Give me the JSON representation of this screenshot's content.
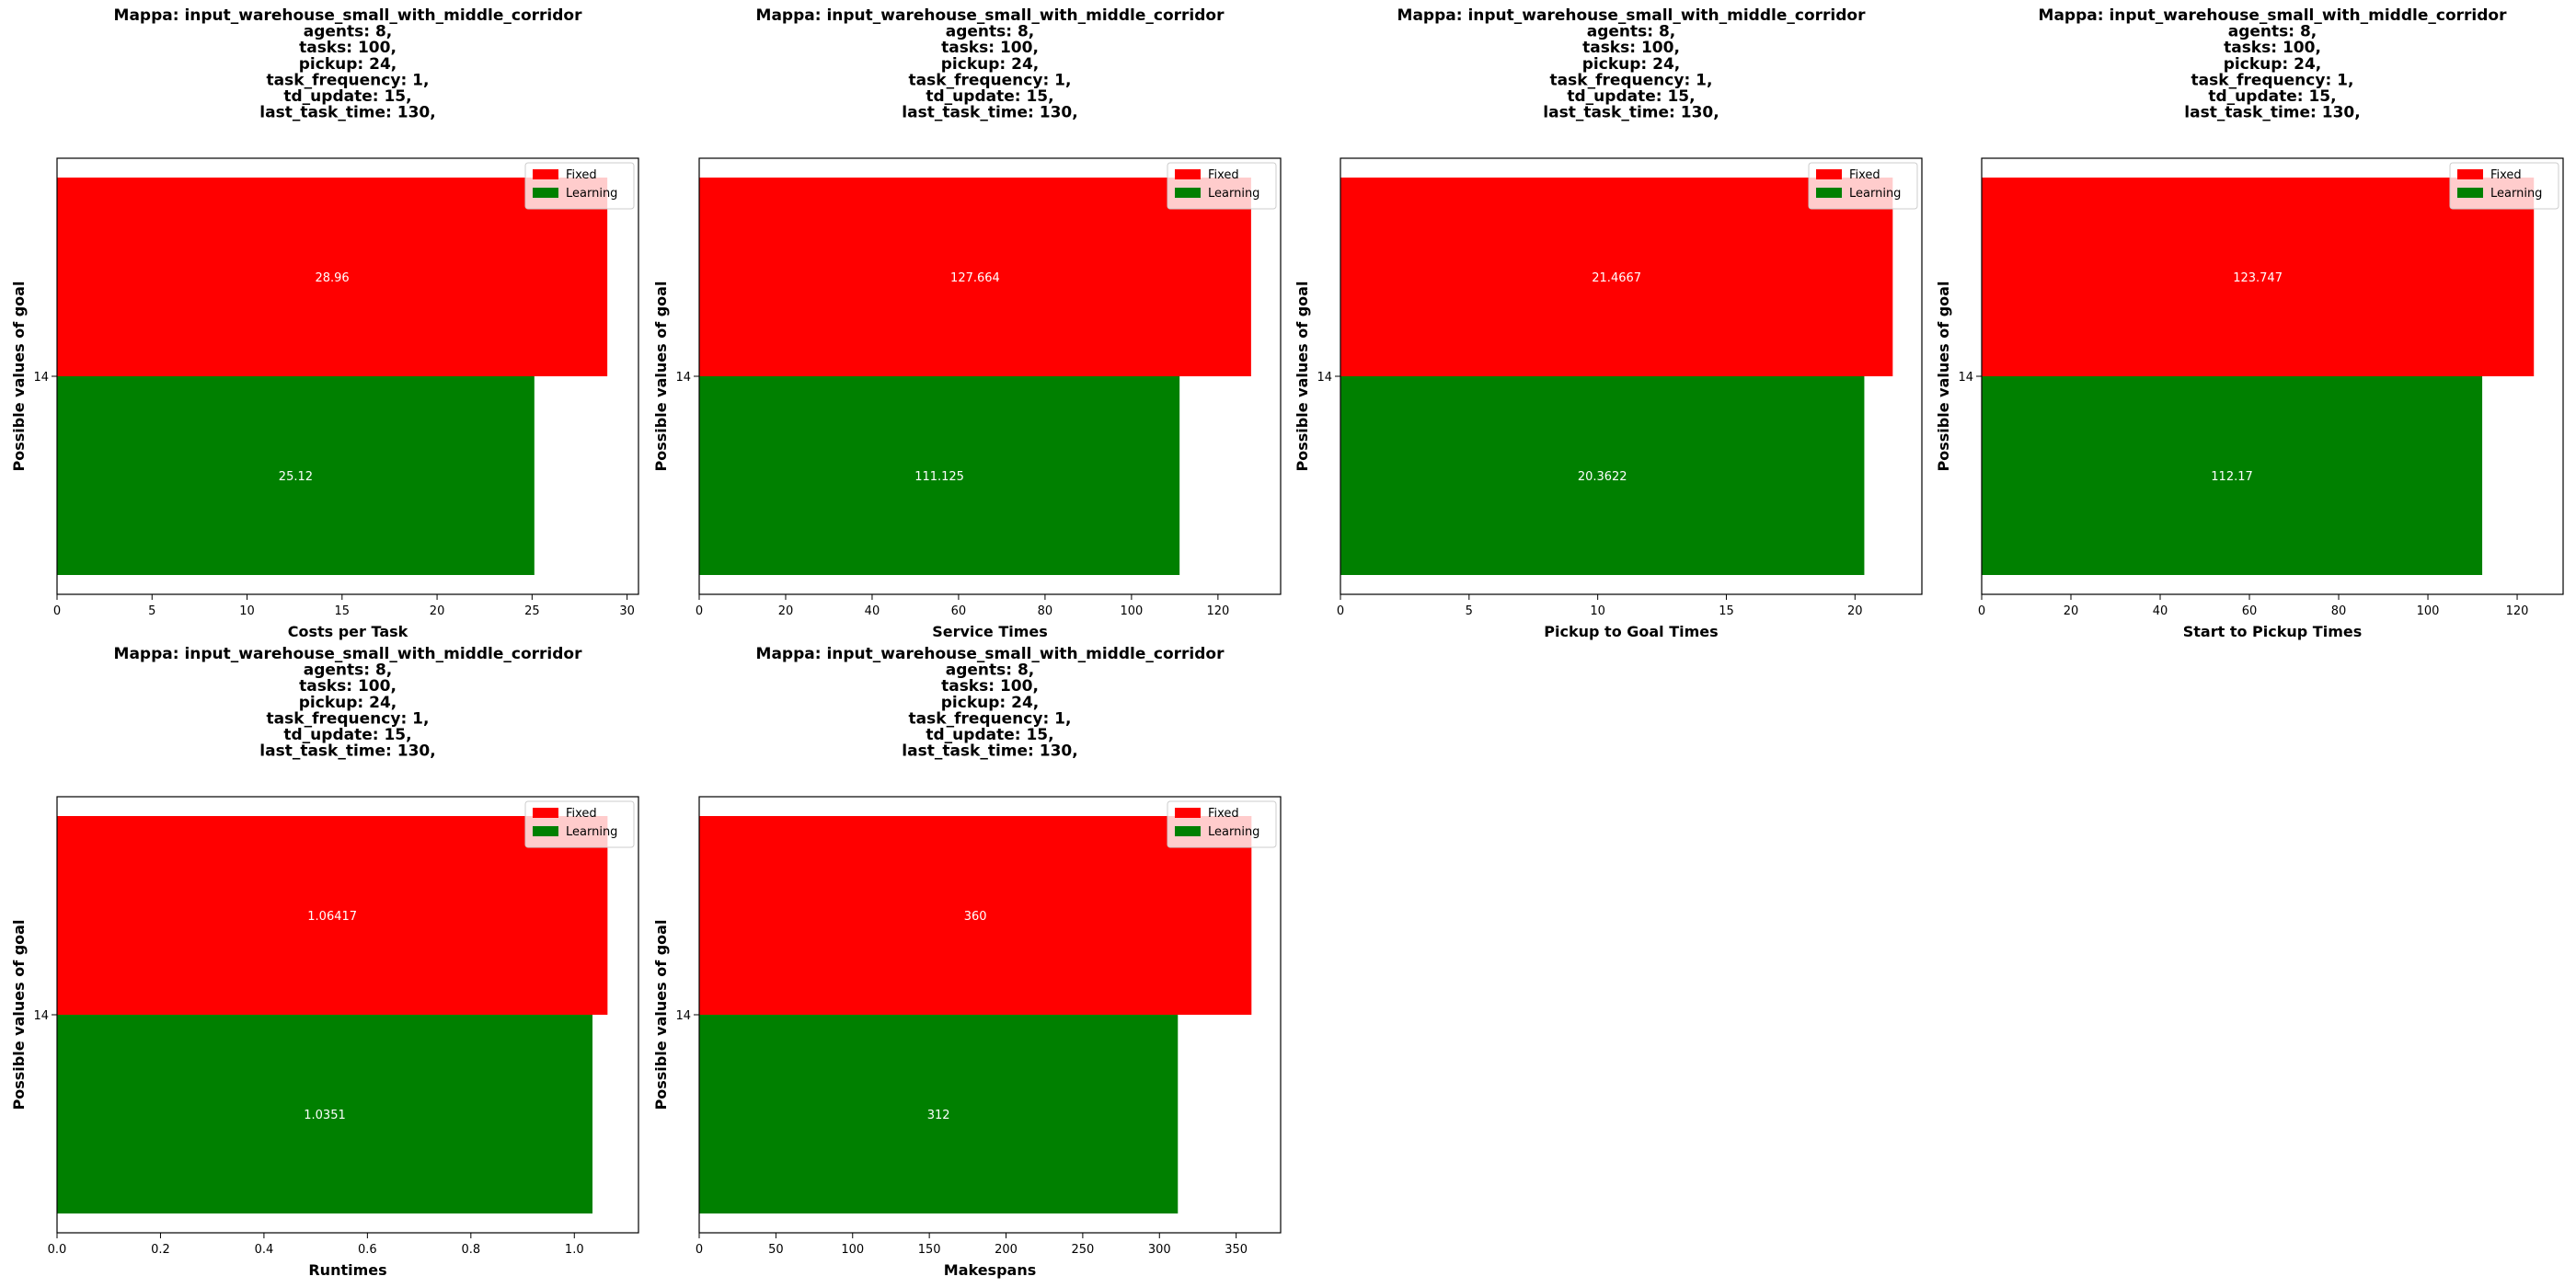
{
  "title_lines": [
    "Mappa: input_warehouse_small_with_middle_corridor",
    "agents: 8,",
    "tasks: 100,",
    "pickup: 24,",
    "task_frequency: 1,",
    "td_update: 15,",
    "last_task_time: 130,"
  ],
  "colors": {
    "Fixed": "#ff0000",
    "Learning": "#008000"
  },
  "chart_data": [
    {
      "type": "bar",
      "orientation": "horizontal",
      "title_lines": [
        "Mappa: input_warehouse_small_with_middle_corridor",
        "agents: 8,",
        "tasks: 100,",
        "pickup: 24,",
        "task_frequency: 1,",
        "td_update: 15,",
        "last_task_time: 130,"
      ],
      "xlabel": "Costs per Task",
      "ylabel": "Possible values of goal",
      "ytick": "14",
      "xlim": [
        0,
        30.6
      ],
      "xticks": [
        0,
        5,
        10,
        15,
        20,
        25,
        30
      ],
      "xtick_labels": [
        "0",
        "5",
        "10",
        "15",
        "20",
        "25",
        "30"
      ],
      "legend": "upper right",
      "series": [
        {
          "name": "Fixed",
          "value": 28.96,
          "label": "28.96"
        },
        {
          "name": "Learning",
          "value": 25.12,
          "label": "25.12"
        }
      ]
    },
    {
      "type": "bar",
      "orientation": "horizontal",
      "title_lines": [
        "Mappa: input_warehouse_small_with_middle_corridor",
        "agents: 8,",
        "tasks: 100,",
        "pickup: 24,",
        "task_frequency: 1,",
        "td_update: 15,",
        "last_task_time: 130,"
      ],
      "xlabel": "Service Times",
      "ylabel": "Possible values of goal",
      "ytick": "14",
      "xlim": [
        0,
        134.5
      ],
      "xticks": [
        0,
        20,
        40,
        60,
        80,
        100,
        120
      ],
      "xtick_labels": [
        "0",
        "20",
        "40",
        "60",
        "80",
        "100",
        "120"
      ],
      "legend": "upper right",
      "series": [
        {
          "name": "Fixed",
          "value": 127.664,
          "label": "127.664"
        },
        {
          "name": "Learning",
          "value": 111.125,
          "label": "111.125"
        }
      ]
    },
    {
      "type": "bar",
      "orientation": "horizontal",
      "title_lines": [
        "Mappa: input_warehouse_small_with_middle_corridor",
        "agents: 8,",
        "tasks: 100,",
        "pickup: 24,",
        "task_frequency: 1,",
        "td_update: 15,",
        "last_task_time: 130,"
      ],
      "xlabel": "Pickup to Goal Times",
      "ylabel": "Possible values of goal",
      "ytick": "14",
      "xlim": [
        0,
        22.6
      ],
      "xticks": [
        0,
        5,
        10,
        15,
        20
      ],
      "xtick_labels": [
        "0",
        "5",
        "10",
        "15",
        "20"
      ],
      "legend": "upper right",
      "series": [
        {
          "name": "Fixed",
          "value": 21.4667,
          "label": "21.4667"
        },
        {
          "name": "Learning",
          "value": 20.3622,
          "label": "20.3622"
        }
      ]
    },
    {
      "type": "bar",
      "orientation": "horizontal",
      "title_lines": [
        "Mappa: input_warehouse_small_with_middle_corridor",
        "agents: 8,",
        "tasks: 100,",
        "pickup: 24,",
        "task_frequency: 1,",
        "td_update: 15,",
        "last_task_time: 130,"
      ],
      "xlabel": "Start to Pickup Times",
      "ylabel": "Possible values of goal",
      "ytick": "14",
      "xlim": [
        0,
        130.3
      ],
      "xticks": [
        0,
        20,
        40,
        60,
        80,
        100,
        120
      ],
      "xtick_labels": [
        "0",
        "20",
        "40",
        "60",
        "80",
        "100",
        "120"
      ],
      "legend": "upper right",
      "series": [
        {
          "name": "Fixed",
          "value": 123.747,
          "label": "123.747"
        },
        {
          "name": "Learning",
          "value": 112.17,
          "label": "112.17"
        }
      ]
    },
    {
      "type": "bar",
      "orientation": "horizontal",
      "title_lines": [
        "Mappa: input_warehouse_small_with_middle_corridor",
        "agents: 8,",
        "tasks: 100,",
        "pickup: 24,",
        "task_frequency: 1,",
        "td_update: 15,",
        "last_task_time: 130,"
      ],
      "xlabel": "Runtimes",
      "ylabel": "Possible values of goal",
      "ytick": "14",
      "xlim": [
        0,
        1.124
      ],
      "xticks": [
        0,
        0.2,
        0.4,
        0.6,
        0.8,
        1.0
      ],
      "xtick_labels": [
        "0.0",
        "0.2",
        "0.4",
        "0.6",
        "0.8",
        "1.0"
      ],
      "legend": "upper right",
      "series": [
        {
          "name": "Fixed",
          "value": 1.06417,
          "label": "1.06417"
        },
        {
          "name": "Learning",
          "value": 1.0351,
          "label": "1.0351"
        }
      ]
    },
    {
      "type": "bar",
      "orientation": "horizontal",
      "title_lines": [
        "Mappa: input_warehouse_small_with_middle_corridor",
        "agents: 8,",
        "tasks: 100,",
        "pickup: 24,",
        "task_frequency: 1,",
        "td_update: 15,",
        "last_task_time: 130,"
      ],
      "xlabel": "Makespans",
      "ylabel": "Possible values of goal",
      "ytick": "14",
      "xlim": [
        0,
        379
      ],
      "xticks": [
        0,
        50,
        100,
        150,
        200,
        250,
        300,
        350
      ],
      "xtick_labels": [
        "0",
        "50",
        "100",
        "150",
        "200",
        "250",
        "300",
        "350"
      ],
      "legend": "upper right",
      "series": [
        {
          "name": "Fixed",
          "value": 360,
          "label": "360"
        },
        {
          "name": "Learning",
          "value": 312,
          "label": "312"
        }
      ]
    }
  ]
}
